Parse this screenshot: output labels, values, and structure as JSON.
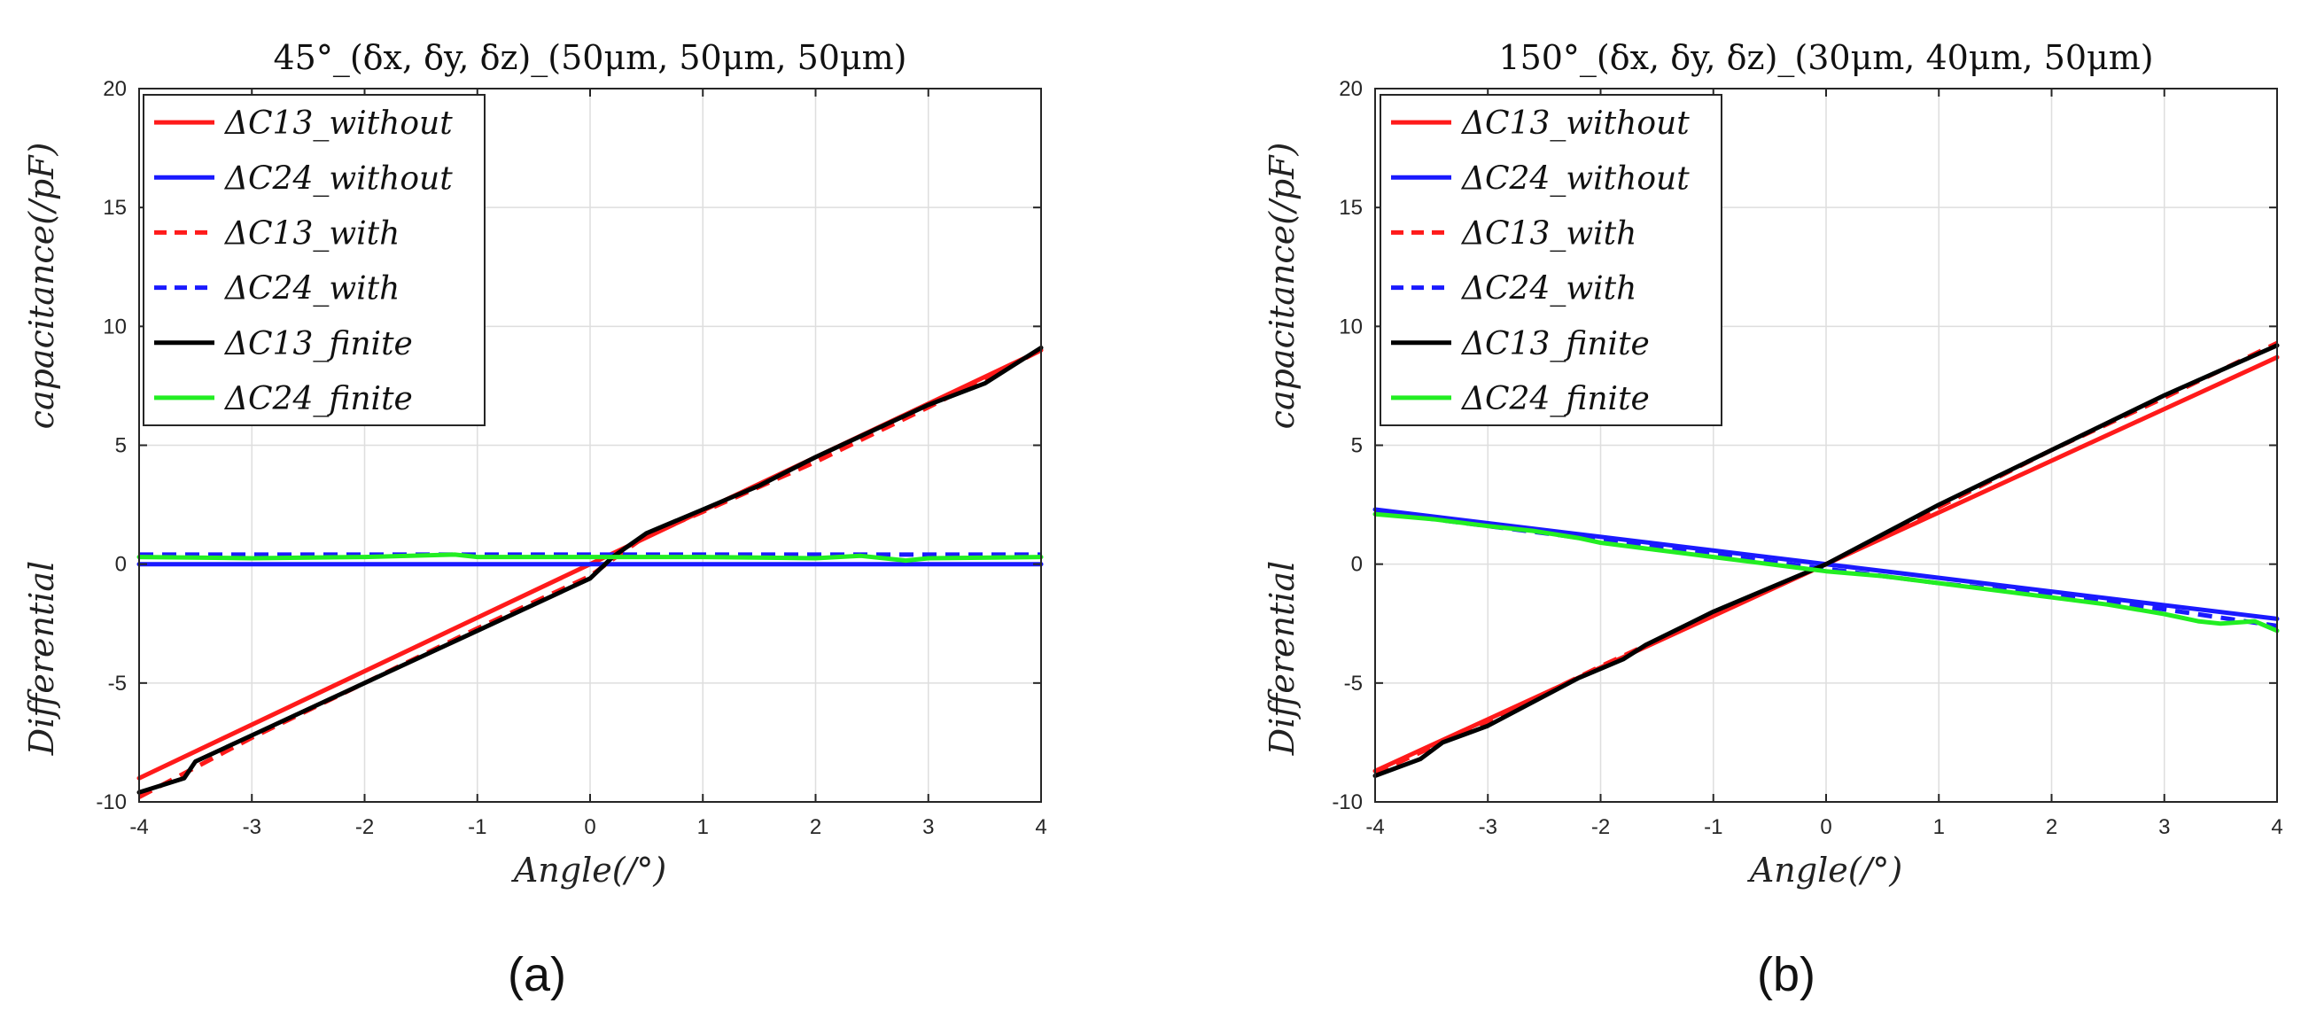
{
  "colors": {
    "red": "#ff1a1a",
    "blue": "#1a1aff",
    "black": "#000000",
    "green": "#22ee22",
    "grid": "#dedede",
    "axis": "#262626"
  },
  "chart_data": [
    {
      "type": "line",
      "panel_label": "(a)",
      "title": "45°_(δx, δy, δz)_(50μm, 50μm, 50μm)",
      "xlabel": "Angle(/°)",
      "ylabel_left": "Differential",
      "ylabel_right": "capacitance(/pF)",
      "xlim": [
        -4,
        4
      ],
      "ylim": [
        -10,
        20
      ],
      "xticks": [
        "-4",
        "-3",
        "-2",
        "-1",
        "0",
        "1",
        "2",
        "3",
        "4"
      ],
      "yticks": [
        "-10",
        "-5",
        "0",
        "5",
        "10",
        "15",
        "20"
      ],
      "grid": true,
      "legend_position": "top-left",
      "series": [
        {
          "name": "ΔC13_without",
          "color": "red",
          "dash": "solid",
          "x": [
            -4,
            4
          ],
          "y": [
            -9.0,
            9.0
          ]
        },
        {
          "name": "ΔC24_without",
          "color": "blue",
          "dash": "solid",
          "x": [
            -4,
            4
          ],
          "y": [
            0.0,
            0.0
          ]
        },
        {
          "name": "ΔC13_with",
          "color": "red",
          "dash": "dashed",
          "x": [
            -4,
            -3,
            -2,
            -1,
            0,
            0.2,
            0.5,
            1,
            2,
            3,
            4
          ],
          "y": [
            -9.8,
            -7.3,
            -5.0,
            -2.7,
            -0.5,
            0.2,
            1.2,
            2.2,
            4.3,
            6.6,
            9.0
          ]
        },
        {
          "name": "ΔC24_with",
          "color": "blue",
          "dash": "dashed",
          "x": [
            -4,
            4
          ],
          "y": [
            0.4,
            0.4
          ]
        },
        {
          "name": "ΔC13_finite",
          "color": "black",
          "dash": "solid",
          "x": [
            -4,
            -3.6,
            -3.5,
            -3,
            -2,
            -1,
            0,
            0.2,
            0.5,
            1,
            1.5,
            2,
            3,
            3.5,
            4
          ],
          "y": [
            -9.6,
            -9.0,
            -8.3,
            -7.2,
            -5.0,
            -2.8,
            -0.6,
            0.3,
            1.3,
            2.3,
            3.3,
            4.5,
            6.7,
            7.6,
            9.1
          ]
        },
        {
          "name": "ΔC24_finite",
          "color": "green",
          "dash": "solid",
          "x": [
            -4,
            -3,
            -2,
            -1.2,
            -1,
            0,
            1,
            2,
            2.4,
            2.8,
            3,
            4
          ],
          "y": [
            0.3,
            0.25,
            0.3,
            0.4,
            0.3,
            0.3,
            0.3,
            0.25,
            0.35,
            0.15,
            0.25,
            0.3
          ]
        }
      ]
    },
    {
      "type": "line",
      "panel_label": "(b)",
      "title": "150°_(δx, δy, δz)_(30μm, 40μm, 50μm)",
      "xlabel": "Angle(/°)",
      "ylabel_left": "Differential",
      "ylabel_right": "capacitance(/pF)",
      "xlim": [
        -4,
        4
      ],
      "ylim": [
        -10,
        20
      ],
      "xticks": [
        "-4",
        "-3",
        "-2",
        "-1",
        "0",
        "1",
        "2",
        "3",
        "4"
      ],
      "yticks": [
        "-10",
        "-5",
        "0",
        "5",
        "10",
        "15",
        "20"
      ],
      "grid": true,
      "legend_position": "top-left",
      "series": [
        {
          "name": "ΔC13_without",
          "color": "red",
          "dash": "solid",
          "x": [
            -4,
            4
          ],
          "y": [
            -8.7,
            8.7
          ]
        },
        {
          "name": "ΔC24_without",
          "color": "blue",
          "dash": "solid",
          "x": [
            -4,
            4
          ],
          "y": [
            2.3,
            -2.3
          ]
        },
        {
          "name": "ΔC13_with",
          "color": "red",
          "dash": "dashed",
          "x": [
            -4,
            -3,
            -2,
            -1,
            0,
            1,
            2,
            3,
            4
          ],
          "y": [
            -8.8,
            -6.6,
            -4.3,
            -2.1,
            0.0,
            2.4,
            4.8,
            7.0,
            9.3
          ]
        },
        {
          "name": "ΔC24_with",
          "color": "blue",
          "dash": "dashed",
          "x": [
            -4,
            -3,
            -2,
            -1,
            0,
            1,
            2,
            3,
            4
          ],
          "y": [
            2.2,
            1.6,
            1.0,
            0.4,
            -0.2,
            -0.8,
            -1.3,
            -1.9,
            -2.6
          ]
        },
        {
          "name": "ΔC13_finite",
          "color": "black",
          "dash": "solid",
          "x": [
            -4,
            -3.6,
            -3.4,
            -3,
            -2.2,
            -1.8,
            -1.6,
            -1,
            -0.2,
            0,
            1,
            2,
            3,
            4
          ],
          "y": [
            -8.9,
            -8.2,
            -7.5,
            -6.8,
            -4.8,
            -4.0,
            -3.4,
            -2.0,
            -0.4,
            0.0,
            2.5,
            4.8,
            7.1,
            9.2
          ]
        },
        {
          "name": "ΔC24_finite",
          "color": "green",
          "dash": "solid",
          "x": [
            -4,
            -3.5,
            -3,
            -2.6,
            -2.2,
            -2,
            -1.5,
            -1,
            -0.5,
            0,
            0.5,
            1,
            1.5,
            2,
            2.5,
            3,
            3.3,
            3.5,
            3.8,
            4
          ],
          "y": [
            2.1,
            1.9,
            1.6,
            1.4,
            1.1,
            0.9,
            0.6,
            0.3,
            0.0,
            -0.3,
            -0.5,
            -0.8,
            -1.1,
            -1.4,
            -1.7,
            -2.1,
            -2.4,
            -2.5,
            -2.4,
            -2.8
          ]
        }
      ]
    }
  ]
}
